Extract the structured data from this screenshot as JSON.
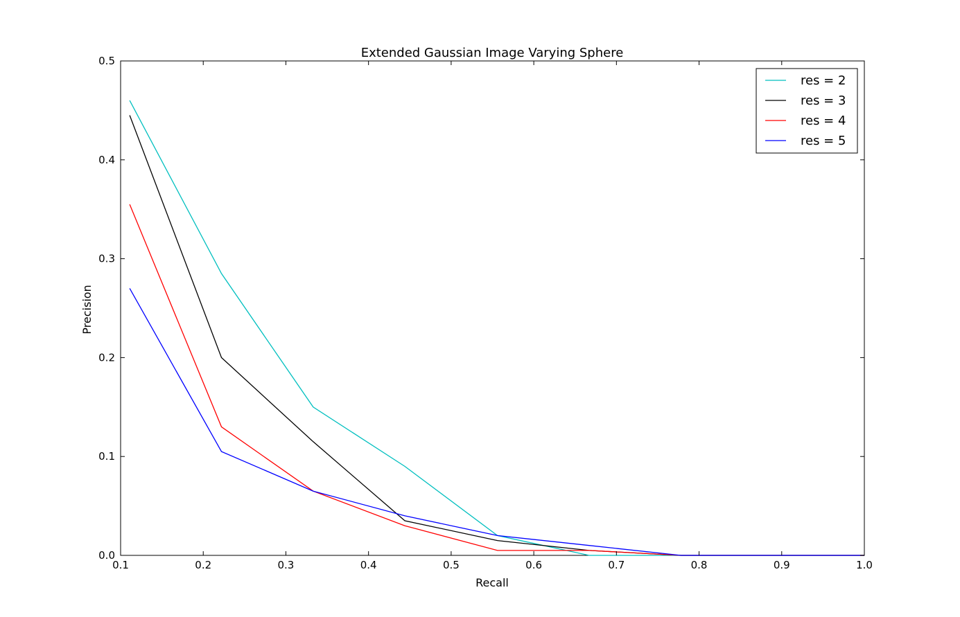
{
  "chart_data": {
    "type": "line",
    "title": "Extended Gaussian Image Varying Sphere",
    "xlabel": "Recall",
    "ylabel": "Precision",
    "xlim": [
      0.1,
      1.0
    ],
    "ylim": [
      0.0,
      0.5
    ],
    "xticks": [
      "0.1",
      "0.2",
      "0.3",
      "0.4",
      "0.5",
      "0.6",
      "0.7",
      "0.8",
      "0.9",
      "1.0"
    ],
    "yticks": [
      "0.0",
      "0.1",
      "0.2",
      "0.3",
      "0.4",
      "0.5"
    ],
    "grid": false,
    "legend_position": "top-right",
    "x": [
      0.111,
      0.222,
      0.333,
      0.444,
      0.556,
      0.667,
      0.778,
      0.889,
      1.0
    ],
    "series": [
      {
        "name": "res = 2",
        "color": "#00bfbf",
        "values": [
          0.46,
          0.285,
          0.15,
          0.09,
          0.02,
          0.0,
          0.0,
          0.0,
          0.0
        ]
      },
      {
        "name": "res = 3",
        "color": "#000000",
        "values": [
          0.445,
          0.2,
          0.115,
          0.035,
          0.015,
          0.005,
          0.0,
          0.0,
          0.0
        ]
      },
      {
        "name": "res = 4",
        "color": "#ff0000",
        "values": [
          0.355,
          0.13,
          0.065,
          0.03,
          0.005,
          0.005,
          0.0,
          0.0,
          0.0
        ]
      },
      {
        "name": "res = 5",
        "color": "#0000ff",
        "values": [
          0.27,
          0.105,
          0.065,
          0.04,
          0.02,
          0.01,
          0.0,
          0.0,
          0.0
        ]
      }
    ]
  }
}
